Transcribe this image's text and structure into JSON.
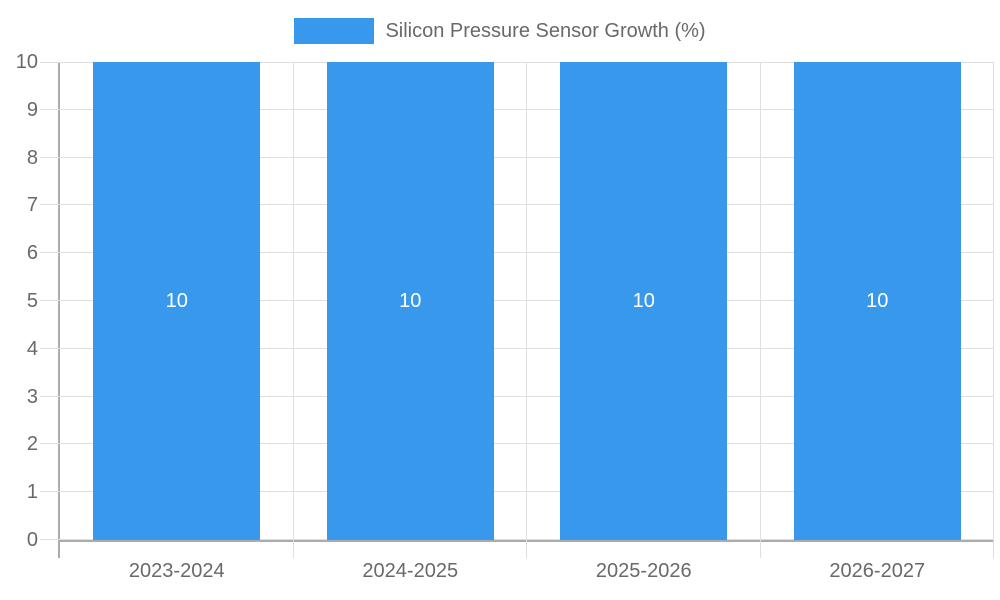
{
  "chart_data": {
    "type": "bar",
    "title": "",
    "legend": {
      "position": "top",
      "label": "Silicon Pressure Sensor Growth (%)"
    },
    "categories": [
      "2023-2024",
      "2024-2025",
      "2025-2026",
      "2026-2027"
    ],
    "series": [
      {
        "name": "Silicon Pressure Sensor Growth (%)",
        "values": [
          10,
          10,
          10,
          10
        ],
        "value_labels": [
          "10",
          "10",
          "10",
          "10"
        ]
      }
    ],
    "xlabel": "",
    "ylabel": "",
    "ylim": [
      0,
      10
    ],
    "yticks": [
      0,
      1,
      2,
      3,
      4,
      5,
      6,
      7,
      8,
      9,
      10
    ],
    "grid": true,
    "colors": {
      "bar": "#3899EC",
      "axis_label_text": "#696969",
      "bar_value_text": "#FFFFFF",
      "gridline": "#DFDFDF",
      "axis_line": "#ABABAB",
      "background": "#FFFFFF"
    }
  }
}
